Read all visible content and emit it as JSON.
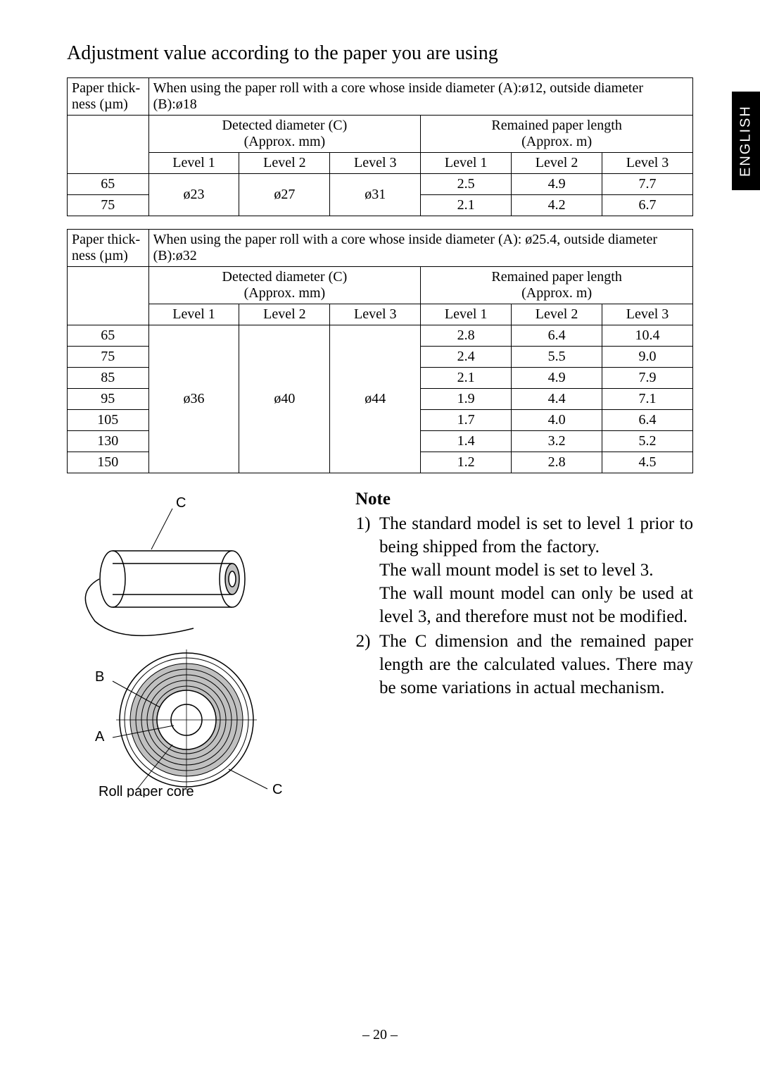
{
  "tab_label": "ENGLISH",
  "title": "Adjustment value according to the paper you are using",
  "col_thickness_l1": "Paper thick-",
  "col_thickness_l2": "ness (µm)",
  "detected_l1": "Detected diameter (C)",
  "detected_l2": "(Approx. mm)",
  "remained_l1": "Remained paper length",
  "remained_l2": "(Approx. m)",
  "lvl1": "Level 1",
  "lvl2": "Level 2",
  "lvl3": "Level 3",
  "t1_desc": "When using the paper roll with a core whose inside diameter (A):ø12, outside diameter (B):ø18",
  "t1_r1_c0": "65",
  "t1_r1_c1": "ø23",
  "t1_r1_c2": "ø27",
  "t1_r1_c3": "ø31",
  "t1_r1_c4": "2.5",
  "t1_r1_c5": "4.9",
  "t1_r1_c6": "7.7",
  "t1_r2_c0": "75",
  "t1_r2_c4": "2.1",
  "t1_r2_c5": "4.2",
  "t1_r2_c6": "6.7",
  "t2_desc": "When using the paper roll with a core whose inside diameter (A): ø25.4, outside diameter (B):ø32",
  "t2_d1": "ø36",
  "t2_d2": "ø40",
  "t2_d3": "ø44",
  "t2_rows": [
    {
      "th": "65",
      "a": "2.8",
      "b": "6.4",
      "c": "10.4"
    },
    {
      "th": "75",
      "a": "2.4",
      "b": "5.5",
      "c": "9.0"
    },
    {
      "th": "85",
      "a": "2.1",
      "b": "4.9",
      "c": "7.9"
    },
    {
      "th": "95",
      "a": "1.9",
      "b": "4.4",
      "c": "7.1"
    },
    {
      "th": "105",
      "a": "1.7",
      "b": "4.0",
      "c": "6.4"
    },
    {
      "th": "130",
      "a": "1.4",
      "b": "3.2",
      "c": "5.2"
    },
    {
      "th": "150",
      "a": "1.2",
      "b": "2.8",
      "c": "4.5"
    }
  ],
  "diagram": {
    "label_A": "A",
    "label_B": "B",
    "label_C": "C",
    "label_core": "Roll paper core",
    "colors": {
      "fill": "#c0c0c0",
      "stroke": "#000000",
      "bg": "#ffffff"
    }
  },
  "note_header": "Note",
  "note1_p1": "The standard model is set to level 1 prior to being shipped from the factory.",
  "note1_p2": "The wall mount model is set to level 3.",
  "note1_p3": "The wall mount model can only be used at level 3, and therefore must not be modified.",
  "note2": "The C dimension and the remained paper length are the calculated values. There may be some variations in actual mechanism.",
  "page_number": "– 20 –"
}
